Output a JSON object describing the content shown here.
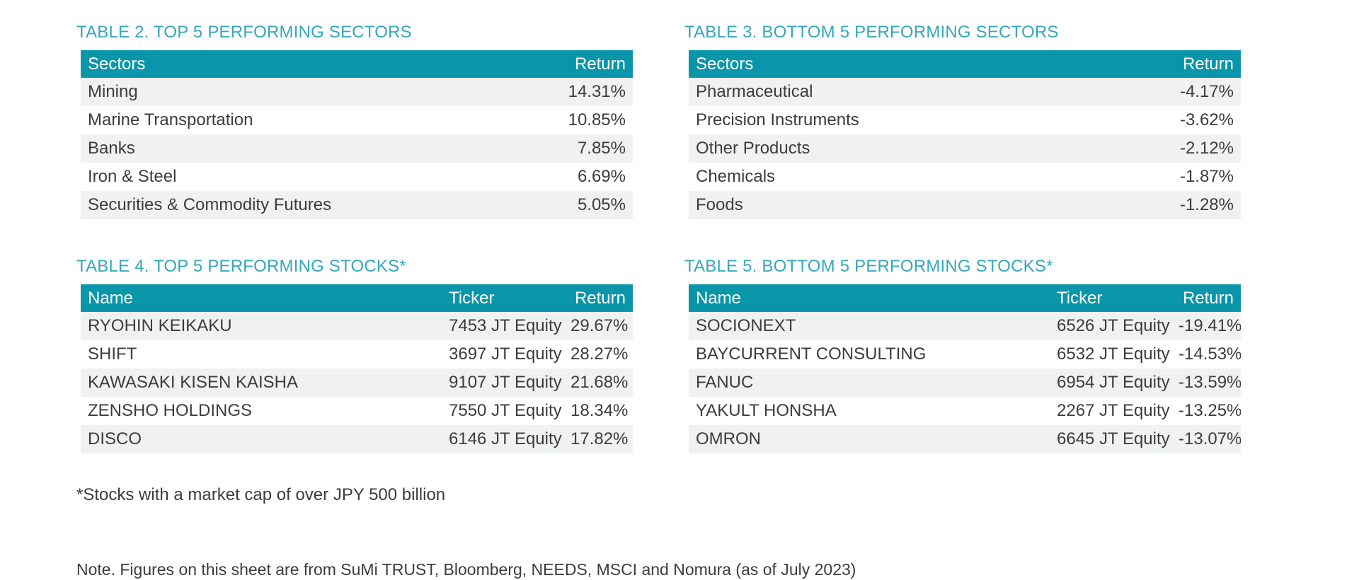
{
  "colors": {
    "header_bg": "#0A96AA",
    "title_text": "#35A7BD",
    "row_alt_bg": "#F0F2F2",
    "body_text": "#3C3C3C",
    "header_text": "#FFFFFF"
  },
  "tables": [
    {
      "title": "TABLE 2. TOP 5 PERFORMING SECTORS",
      "columns": [
        "Sectors",
        "Return"
      ],
      "rows": [
        [
          "Mining",
          "14.31%"
        ],
        [
          "Marine Transportation",
          "10.85%"
        ],
        [
          "Banks",
          "7.85%"
        ],
        [
          "Iron & Steel",
          "6.69%"
        ],
        [
          "Securities & Commodity Futures",
          "5.05%"
        ]
      ]
    },
    {
      "title": "TABLE 3. BOTTOM 5 PERFORMING SECTORS",
      "columns": [
        "Sectors",
        "Return"
      ],
      "rows": [
        [
          "Pharmaceutical",
          "-4.17%"
        ],
        [
          "Precision Instruments",
          "-3.62%"
        ],
        [
          "Other Products",
          "-2.12%"
        ],
        [
          "Chemicals",
          "-1.87%"
        ],
        [
          "Foods",
          "-1.28%"
        ]
      ]
    },
    {
      "title": "TABLE 4. TOP 5 PERFORMING STOCKS*",
      "columns": [
        "Name",
        "Ticker",
        "Return"
      ],
      "rows": [
        [
          "RYOHIN KEIKAKU",
          "7453 JT Equity",
          "29.67%"
        ],
        [
          "SHIFT",
          "3697 JT Equity",
          "28.27%"
        ],
        [
          "KAWASAKI KISEN KAISHA",
          "9107 JT Equity",
          "21.68%"
        ],
        [
          "ZENSHO HOLDINGS",
          "7550 JT Equity",
          "18.34%"
        ],
        [
          "DISCO",
          "6146 JT Equity",
          "17.82%"
        ]
      ]
    },
    {
      "title": "TABLE 5. BOTTOM 5 PERFORMING STOCKS*",
      "columns": [
        "Name",
        "Ticker",
        "Return"
      ],
      "rows": [
        [
          "SOCIONEXT",
          "6526 JT Equity",
          "-19.41%"
        ],
        [
          "BAYCURRENT CONSULTING",
          "6532 JT Equity",
          "-14.53%"
        ],
        [
          "FANUC",
          "6954 JT Equity",
          "-13.59%"
        ],
        [
          "YAKULT HONSHA",
          "2267 JT Equity",
          "-13.25%"
        ],
        [
          "OMRON",
          "6645 JT Equity",
          "-13.07%"
        ]
      ]
    }
  ],
  "footnotes": {
    "market_cap_note": "*Stocks with a market cap of over JPY 500 billion",
    "source_note": "Note. Figures on this sheet are from SuMi TRUST, Bloomberg, NEEDS, MSCI and Nomura (as of July 2023)"
  }
}
